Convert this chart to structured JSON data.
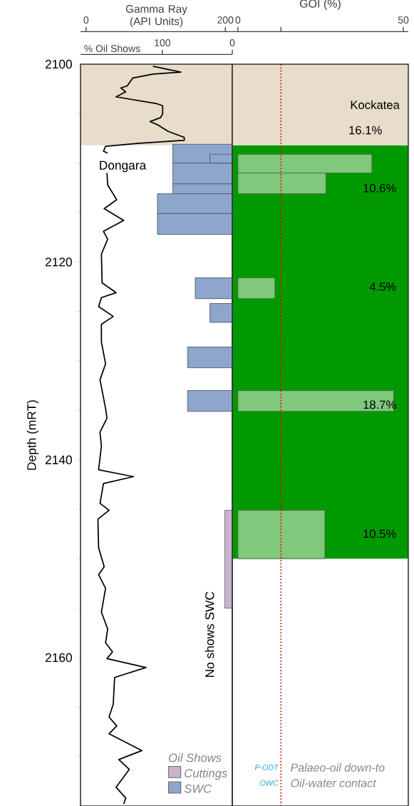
{
  "chart_data": [
    {
      "type": "line",
      "orientation": "horizontal",
      "xlabel": "Gamma Ray (API Units)",
      "x2label": "% Oil Shows",
      "ylabel": "Depth (mRT)",
      "legend_title": "Oil Shows",
      "legend": "bottom right",
      "xlim": [
        -8,
        210
      ],
      "xticks": [
        0,
        200
      ],
      "x2lim": [
        217,
        0
      ],
      "x2ticks": [
        100,
        0
      ],
      "ylim": [
        2175,
        2100
      ],
      "yticks": [
        2100,
        {
          "value": 2105,
          "label": null
        },
        {
          "value": 2110,
          "label": null
        },
        {
          "value": 2115,
          "label": null
        },
        2120,
        {
          "value": 2125,
          "label": null
        },
        {
          "value": 2130,
          "label": null
        },
        {
          "value": 2135,
          "label": null
        },
        2140,
        {
          "value": 2145,
          "label": null
        },
        {
          "value": 2150,
          "label": null
        },
        {
          "value": 2155,
          "label": null
        },
        2160,
        {
          "value": 2165,
          "label": null
        },
        {
          "value": 2170,
          "label": null
        },
        {
          "value": 2175,
          "label": null
        }
      ],
      "bands": [
        {
          "axis": "y",
          "from": 2100,
          "to": 2108.2,
          "color": "#e8dccb"
        }
      ],
      "annotations": [
        "Dongara",
        "No shows SWC"
      ],
      "series": [
        {
          "type": "line",
          "color": "#000000",
          "x": [
            2100.2,
            2100.8,
            2101.0,
            2101.4,
            2102.2,
            2102.4,
            2102.8,
            2103.3,
            2104.0,
            2104.2,
            2105.0,
            2105.4,
            2105.8,
            2106.1,
            2106.8,
            2107.4,
            2107.7,
            2108.0,
            2108.3,
            2108.8,
            2109.0,
            2110.0,
            2111.0,
            2112.2,
            2113.7,
            2114.6,
            2115.8,
            2116.9,
            2117.7,
            2119.2,
            2122.1,
            2123.1,
            2123.6,
            2124.5,
            2125.5,
            2126.3,
            2128.1,
            2130.3,
            2131.9,
            2134.8,
            2135.8,
            2137.2,
            2138.6,
            2141.0,
            2141.7,
            2142.4,
            2144.4,
            2145.1,
            2146.0,
            2148.9,
            2150.8,
            2151.6,
            2153.0,
            2155.4,
            2157.1,
            2158.5,
            2159.4,
            2160.1,
            2161.0,
            2162.0,
            2164.7,
            2166.0,
            2166.9,
            2167.7,
            2169.4,
            2170.3,
            2171.3,
            2173.1,
            2174.2,
            2174.8
          ],
          "values": [
            96,
            136,
            96,
            67,
            59,
            50,
            57,
            43,
            102,
            110,
            110,
            107,
            92,
            102,
            118,
            141,
            141,
            76,
            28,
            25,
            31,
            null,
            30,
            31,
            44,
            26,
            54,
            25,
            31,
            22,
            23,
            43,
            22,
            18,
            39,
            22,
            22,
            28,
            20,
            28,
            30,
            20,
            22,
            18,
            68,
            25,
            20,
            33,
            17,
            18,
            26,
            18,
            28,
            22,
            31,
            28,
            38,
            30,
            86,
            41,
            39,
            33,
            44,
            33,
            80,
            47,
            62,
            43,
            57,
            54
          ]
        },
        {
          "type": "histogram",
          "name": "Cuttings",
          "axis": "x2",
          "color": "#c8b4cc",
          "bins": [
            2145.1,
            2155.0
          ],
          "values": [
            11
          ]
        },
        {
          "type": "histogram",
          "name": "SWC",
          "axis": "x2",
          "color": "#8ea6cc",
          "bins": [
            2108.1,
            2110.0,
            2112.1,
            2113.1,
            2115.1,
            2117.2,
            2121.6,
            2123.7,
            2124.2,
            2126.1,
            2128.6,
            2130.7,
            2133.0,
            2135.1
          ],
          "values": [
            85,
            85,
            85,
            107,
            107,
            null,
            53,
            null,
            32,
            null,
            64,
            null,
            64
          ]
        },
        {
          "type": "histogram",
          "axis": "x2",
          "color": "#8ea6cc",
          "bins": [
            2109.1,
            2110.0
          ],
          "values": [
            32
          ]
        }
      ]
    },
    {
      "type": "histogram",
      "orientation": "horizontal",
      "xlabel": "GOI (%)",
      "xlim": [
        -1.7,
        51.5
      ],
      "xticks": [
        0,
        {
          "value": 13,
          "label": null
        },
        50
      ],
      "ylim": [
        2175,
        2100
      ],
      "tick_labels": "x",
      "color": "#80c87c",
      "yticks": [
        2100,
        {
          "value": 2105,
          "label": null
        },
        {
          "value": 2110,
          "label": null
        },
        {
          "value": 2115,
          "label": null
        },
        2120,
        {
          "value": 2125,
          "label": null
        },
        {
          "value": 2130,
          "label": null
        },
        {
          "value": 2135,
          "label": null
        },
        2140,
        {
          "value": 2145,
          "label": null
        },
        {
          "value": 2150,
          "label": null
        },
        {
          "value": 2155,
          "label": null
        },
        2160,
        {
          "value": 2165,
          "label": null
        },
        {
          "value": 2170,
          "label": null
        },
        {
          "value": 2175,
          "label": null
        }
      ],
      "bins": [
        2109.1,
        2111.0,
        2113.1,
        2121.6,
        2123.7,
        2133.0,
        2135.1,
        2145.1,
        2150.0
      ],
      "values": [
        40.5,
        26.6,
        null,
        11.2,
        null,
        47.1,
        null,
        26.3
      ],
      "bands": [
        {
          "axis": "y",
          "from": 2100,
          "to": 2108.2,
          "color": "#e8dccb",
          "label": "Kockatea"
        },
        {
          "axis": "y",
          "from": 2108.2,
          "to": 2150,
          "color": "#009900"
        }
      ],
      "ref_lines": [
        {
          "axis": "x",
          "value": 13,
          "color": "#ff0000",
          "line_style": "dotted"
        }
      ],
      "annotations": [
        "16.1%",
        "10.6%",
        "4.5%",
        "18.7%",
        "10.5%",
        "P-ODT",
        "Palaeo-oil down-to",
        "OWC",
        "Oil-water contact"
      ]
    }
  ]
}
